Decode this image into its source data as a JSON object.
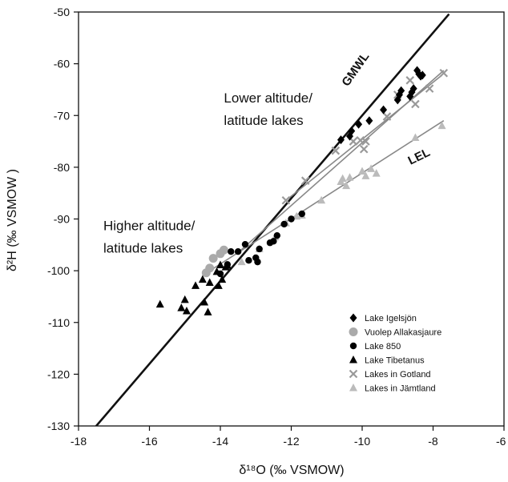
{
  "chart_data": {
    "type": "scatter",
    "xlabel": "δ¹⁸O (‰ VSMOW)",
    "ylabel": "δ²H (‰ VSMOW )",
    "xlim": [
      -18,
      -6
    ],
    "ylim": [
      -130,
      -50
    ],
    "xticks": [
      -18,
      -16,
      -14,
      -12,
      -10,
      -8,
      -6
    ],
    "yticks": [
      -130,
      -120,
      -110,
      -100,
      -90,
      -80,
      -70,
      -60,
      -50
    ],
    "grid": false,
    "legend_position": "bottom-right",
    "annotations": [
      {
        "text": "Lower altitude/",
        "x": -13.9,
        "y": -67.5
      },
      {
        "text": "latitude lakes",
        "x": -13.9,
        "y": -71.8
      },
      {
        "text": "Higher altitude/",
        "x": -17.3,
        "y": -92.2
      },
      {
        "text": "latitude lakes",
        "x": -17.3,
        "y": -96.5
      }
    ],
    "lines": [
      {
        "name": "GMWL",
        "label": "GMWL",
        "color": "#111111",
        "x": [
          -17.55,
          -7.55
        ],
        "y": [
          -130.4,
          -50.4
        ],
        "label_x": -10.1,
        "label_y": -61.5,
        "label_angle": -55
      },
      {
        "name": "fit-gotland",
        "label": "",
        "color": "#888888",
        "x": [
          -12.2,
          -7.75
        ],
        "y": [
          -86.7,
          -62.2
        ]
      },
      {
        "name": "fit-high",
        "label": "",
        "color": "#888888",
        "x": [
          -13.55,
          -7.7
        ],
        "y": [
          -96.8,
          -61.3
        ]
      },
      {
        "name": "LEL",
        "label": "LEL",
        "color": "#888888",
        "x": [
          -14.5,
          -7.7
        ],
        "y": [
          -100.9,
          -71.0
        ],
        "label_x": -8.35,
        "label_y": -78.6,
        "label_angle": -26
      }
    ],
    "series": [
      {
        "name": "Lake Igelsjön",
        "marker": "diamond",
        "color": "#000000",
        "x": [
          -8.45,
          -8.4,
          -8.35,
          -8.3,
          -8.55,
          -8.6,
          -8.65,
          -8.9,
          -8.95,
          -9.0,
          -9.4,
          -9.8,
          -10.1,
          -10.3,
          -10.35,
          -10.6
        ],
        "y": [
          -61.3,
          -62.0,
          -62.4,
          -62.2,
          -64.8,
          -65.5,
          -66.3,
          -65.2,
          -66.0,
          -67.0,
          -68.9,
          -71.0,
          -71.7,
          -73.0,
          -74.0,
          -74.7
        ]
      },
      {
        "name": "Vuolep Allakasjaure",
        "marker": "circle",
        "color": "#aaaaaa",
        "x": [
          -13.9,
          -14.0,
          -14.2,
          -14.3,
          -14.4
        ],
        "y": [
          -96.0,
          -96.7,
          -97.6,
          -99.5,
          -100.4
        ]
      },
      {
        "name": "Lake 850",
        "marker": "circle",
        "color": "#000000",
        "x": [
          -11.7,
          -12.0,
          -12.2,
          -12.4,
          -12.5,
          -12.6,
          -12.9,
          -12.95,
          -13.0,
          -13.2,
          -13.3,
          -13.5,
          -13.7,
          -13.8,
          -14.0
        ],
        "y": [
          -89.0,
          -90.0,
          -91.0,
          -93.2,
          -94.3,
          -94.6,
          -95.8,
          -98.3,
          -97.5,
          -98.0,
          -94.9,
          -96.3,
          -96.3,
          -98.8,
          -100.6
        ]
      },
      {
        "name": "Lake Tibetanus",
        "marker": "triangle",
        "color": "#000000",
        "x": [
          -15.7,
          -15.1,
          -15.0,
          -14.95,
          -14.7,
          -14.5,
          -14.45,
          -14.35,
          -14.3,
          -14.1,
          -14.05,
          -14.0,
          -13.95,
          -13.85,
          -13.8
        ],
        "y": [
          -106.5,
          -107.2,
          -105.6,
          -107.8,
          -102.9,
          -101.7,
          -106.1,
          -108.0,
          -102.3,
          -100.2,
          -102.9,
          -98.9,
          -101.7,
          -99.3,
          -99.0
        ]
      },
      {
        "name": "Lakes in Gotland",
        "marker": "x",
        "color": "#999999",
        "x": [
          -7.7,
          -8.1,
          -8.5,
          -8.65,
          -9.0,
          -9.3,
          -9.9,
          -9.95,
          -10.05,
          -10.25,
          -10.75,
          -11.6,
          -12.15
        ],
        "y": [
          -61.8,
          -64.8,
          -67.8,
          -63.2,
          -66.0,
          -70.2,
          -75.0,
          -76.5,
          -74.8,
          -75.0,
          -76.8,
          -82.6,
          -86.4
        ]
      },
      {
        "name": "Lakes in Jämtland",
        "marker": "triangle",
        "color": "#bbbbbb",
        "x": [
          -7.75,
          -8.5,
          -9.6,
          -9.75,
          -9.9,
          -10.0,
          -10.35,
          -10.45,
          -10.55,
          -10.6,
          -11.15,
          -11.7,
          -11.85,
          -12.15,
          -12.45,
          -12.9,
          -13.4
        ],
        "y": [
          -72.0,
          -74.3,
          -81.2,
          -80.3,
          -81.7,
          -80.8,
          -82.0,
          -83.6,
          -82.2,
          -82.8,
          -86.4,
          -89.3,
          -89.5,
          -90.8,
          -93.5,
          -95.8,
          -98.3
        ]
      }
    ]
  }
}
